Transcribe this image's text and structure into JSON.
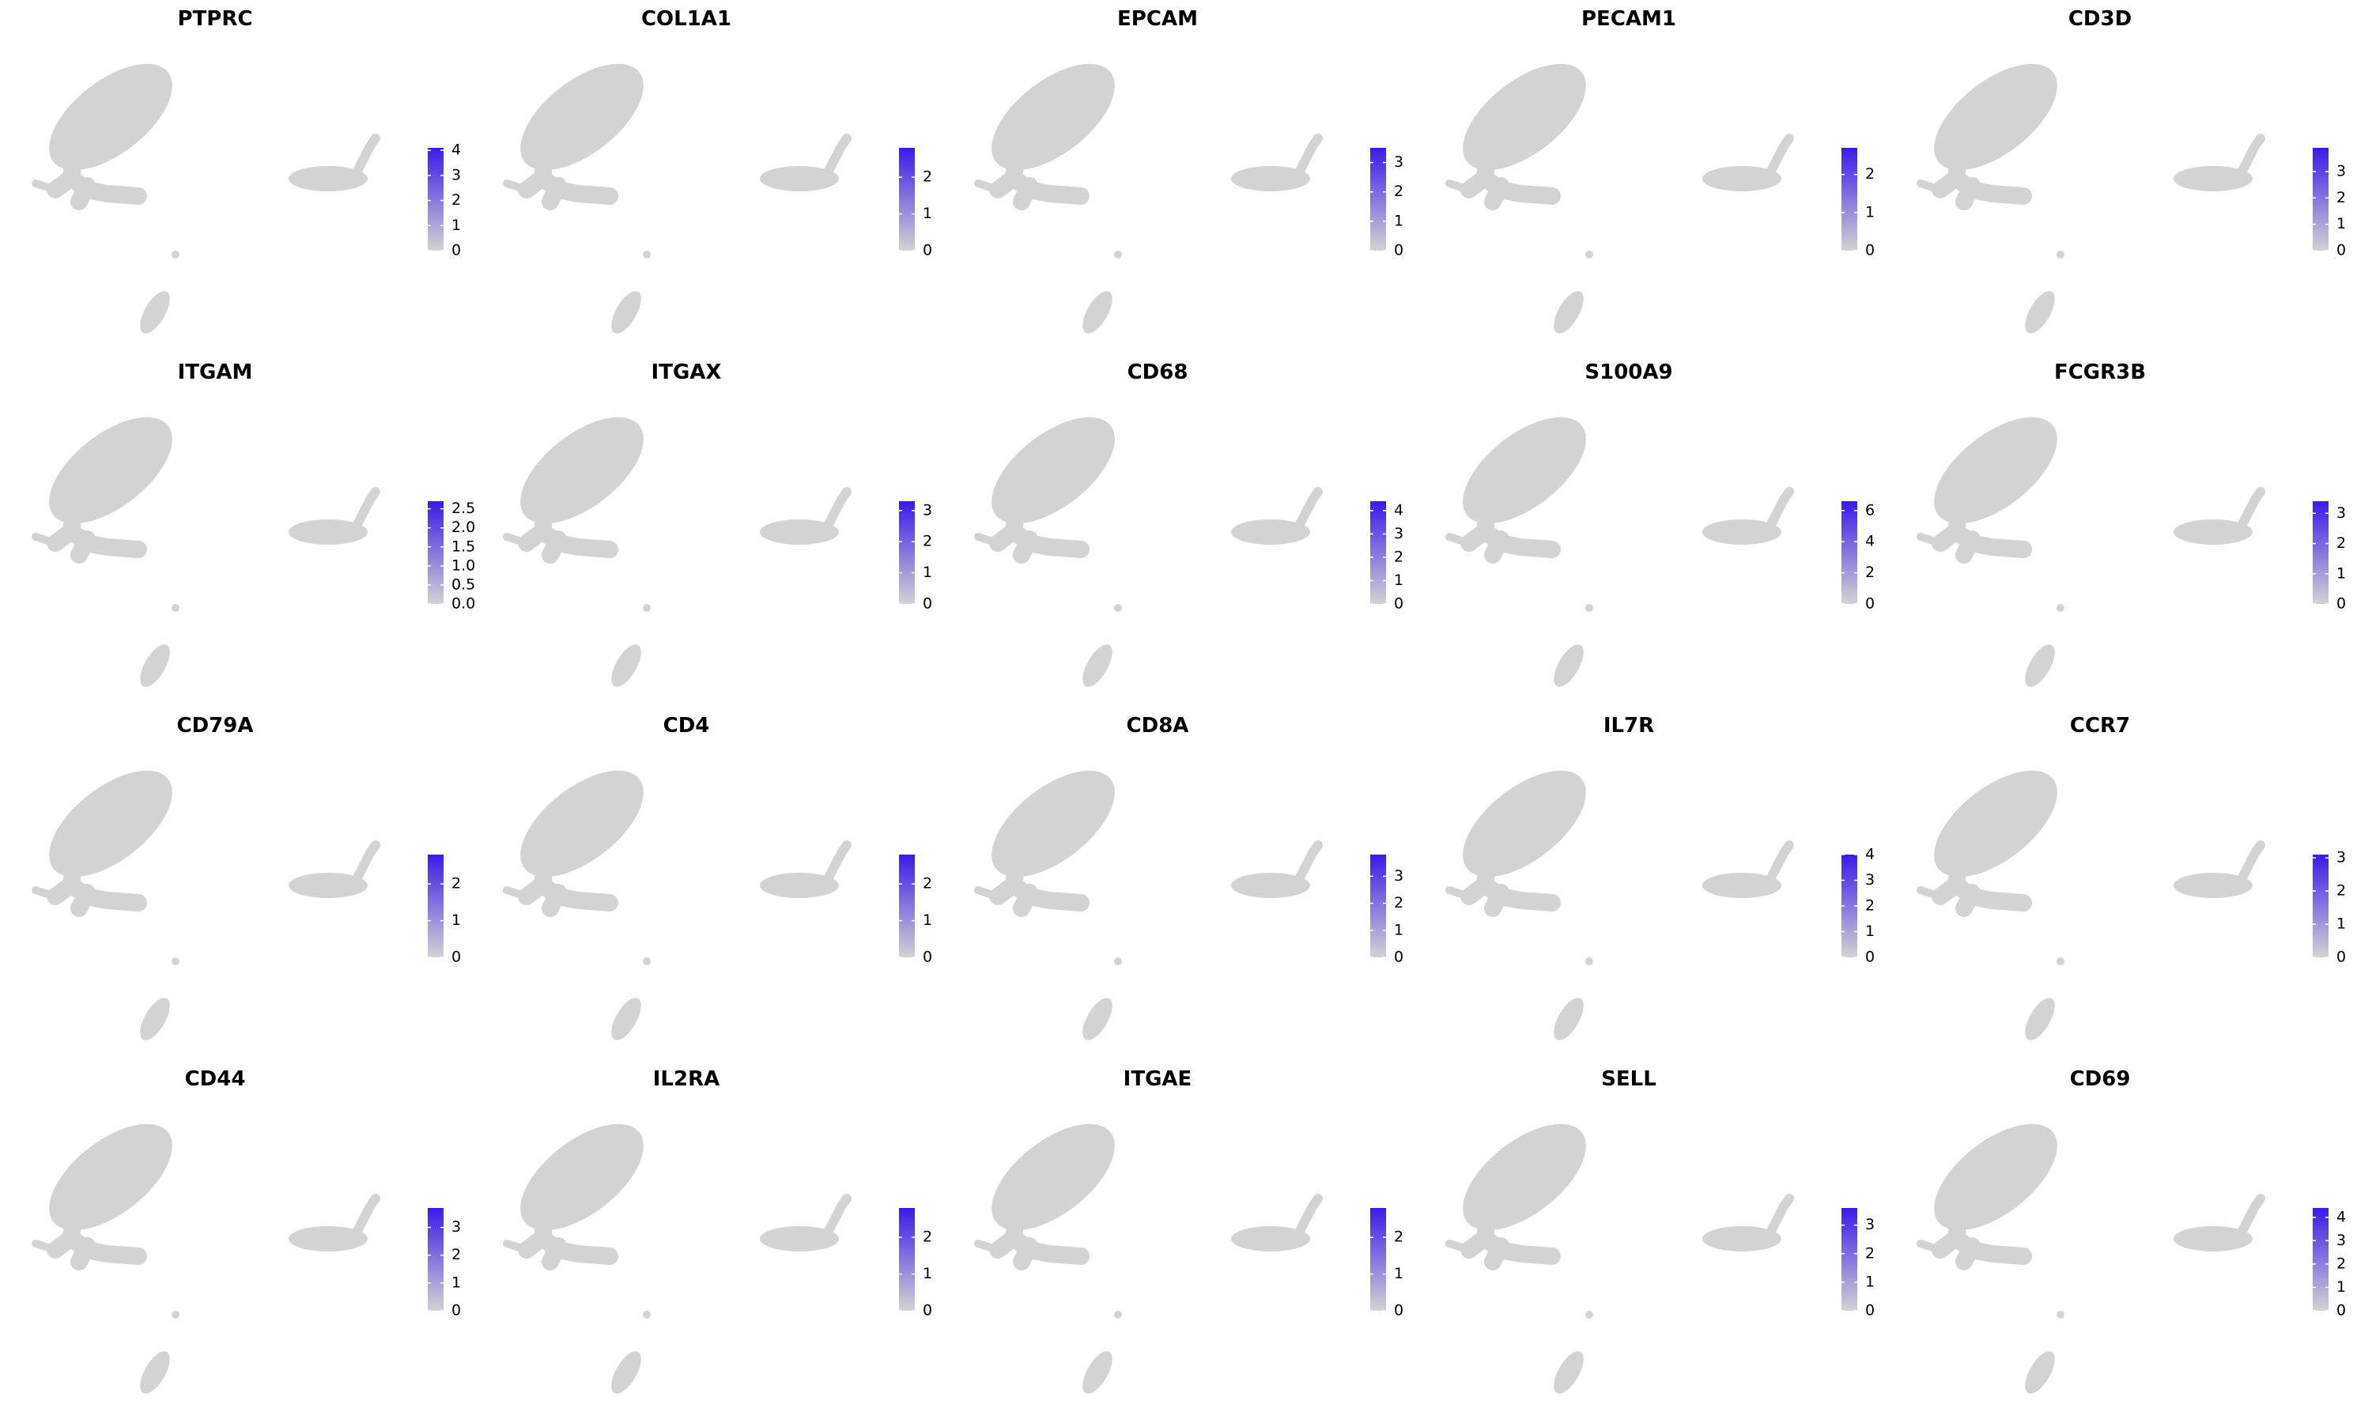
{
  "chart_data": [
    {
      "type": "scatter",
      "title": "PTPRC",
      "colorbar": {
        "lim": [
          0,
          4.1
        ],
        "ticks": [
          0,
          1,
          2,
          3,
          4
        ],
        "colors": [
          "#d3d3d3",
          "#3a1ae8"
        ]
      }
    },
    {
      "type": "scatter",
      "title": "COL1A1",
      "colorbar": {
        "lim": [
          0,
          2.8
        ],
        "ticks": [
          0,
          1,
          2
        ],
        "colors": [
          "#d3d3d3",
          "#3a1ae8"
        ]
      }
    },
    {
      "type": "scatter",
      "title": "EPCAM",
      "colorbar": {
        "lim": [
          0,
          3.5
        ],
        "ticks": [
          0,
          1,
          2,
          3
        ],
        "colors": [
          "#d3d3d3",
          "#3a1ae8"
        ]
      }
    },
    {
      "type": "scatter",
      "title": "PECAM1",
      "colorbar": {
        "lim": [
          0,
          2.7
        ],
        "ticks": [
          0,
          1,
          2
        ],
        "colors": [
          "#d3d3d3",
          "#3a1ae8"
        ]
      }
    },
    {
      "type": "scatter",
      "title": "CD3D",
      "colorbar": {
        "lim": [
          0,
          3.9
        ],
        "ticks": [
          0,
          1,
          2,
          3
        ],
        "colors": [
          "#d3d3d3",
          "#3a1ae8"
        ]
      }
    },
    {
      "type": "scatter",
      "title": "ITGAM",
      "colorbar": {
        "lim": [
          0,
          2.7
        ],
        "ticks": [
          {
            "value": 0,
            "label": "0.0"
          },
          {
            "value": 0.5,
            "label": "0.5"
          },
          {
            "value": 1,
            "label": "1.0"
          },
          {
            "value": 1.5,
            "label": "1.5"
          },
          {
            "value": 2,
            "label": "2.0"
          },
          {
            "value": 2.5,
            "label": "2.5"
          }
        ],
        "colors": [
          "#d3d3d3",
          "#3a1ae8"
        ]
      }
    },
    {
      "type": "scatter",
      "title": "ITGAX",
      "colorbar": {
        "lim": [
          0,
          3.3
        ],
        "ticks": [
          0,
          1,
          2,
          3
        ],
        "colors": [
          "#d3d3d3",
          "#3a1ae8"
        ]
      }
    },
    {
      "type": "scatter",
      "title": "CD68",
      "colorbar": {
        "lim": [
          0,
          4.4
        ],
        "ticks": [
          0,
          1,
          2,
          3,
          4
        ],
        "colors": [
          "#d3d3d3",
          "#3a1ae8"
        ]
      }
    },
    {
      "type": "scatter",
      "title": "S100A9",
      "colorbar": {
        "lim": [
          0,
          6.6
        ],
        "ticks": [
          0,
          2,
          4,
          6
        ],
        "colors": [
          "#d3d3d3",
          "#3a1ae8"
        ]
      }
    },
    {
      "type": "scatter",
      "title": "FCGR3B",
      "colorbar": {
        "lim": [
          0,
          3.4
        ],
        "ticks": [
          0,
          1,
          2,
          3
        ],
        "colors": [
          "#d3d3d3",
          "#3a1ae8"
        ]
      }
    },
    {
      "type": "scatter",
      "title": "CD79A",
      "colorbar": {
        "lim": [
          0,
          2.8
        ],
        "ticks": [
          0,
          1,
          2
        ],
        "colors": [
          "#d3d3d3",
          "#3a1ae8"
        ]
      }
    },
    {
      "type": "scatter",
      "title": "CD4",
      "colorbar": {
        "lim": [
          0,
          2.8
        ],
        "ticks": [
          0,
          1,
          2
        ],
        "colors": [
          "#d3d3d3",
          "#3a1ae8"
        ]
      }
    },
    {
      "type": "scatter",
      "title": "CD8A",
      "colorbar": {
        "lim": [
          0,
          3.8
        ],
        "ticks": [
          0,
          1,
          2,
          3
        ],
        "colors": [
          "#d3d3d3",
          "#3a1ae8"
        ]
      }
    },
    {
      "type": "scatter",
      "title": "IL7R",
      "colorbar": {
        "lim": [
          0,
          4.0
        ],
        "ticks": [
          0,
          1,
          2,
          3,
          4
        ],
        "colors": [
          "#d3d3d3",
          "#3a1ae8"
        ]
      }
    },
    {
      "type": "scatter",
      "title": "CCR7",
      "colorbar": {
        "lim": [
          0,
          3.1
        ],
        "ticks": [
          0,
          1,
          2,
          3
        ],
        "colors": [
          "#d3d3d3",
          "#3a1ae8"
        ]
      }
    },
    {
      "type": "scatter",
      "title": "CD44",
      "colorbar": {
        "lim": [
          0,
          3.7
        ],
        "ticks": [
          0,
          1,
          2,
          3
        ],
        "colors": [
          "#d3d3d3",
          "#3a1ae8"
        ]
      }
    },
    {
      "type": "scatter",
      "title": "IL2RA",
      "colorbar": {
        "lim": [
          0,
          2.8
        ],
        "ticks": [
          0,
          1,
          2
        ],
        "colors": [
          "#d3d3d3",
          "#3a1ae8"
        ]
      }
    },
    {
      "type": "scatter",
      "title": "ITGAE",
      "colorbar": {
        "lim": [
          0,
          2.8
        ],
        "ticks": [
          0,
          1,
          2
        ],
        "colors": [
          "#d3d3d3",
          "#3a1ae8"
        ]
      }
    },
    {
      "type": "scatter",
      "title": "SELL",
      "colorbar": {
        "lim": [
          0,
          3.6
        ],
        "ticks": [
          0,
          1,
          2,
          3
        ],
        "colors": [
          "#d3d3d3",
          "#3a1ae8"
        ]
      }
    },
    {
      "type": "scatter",
      "title": "CD69",
      "colorbar": {
        "lim": [
          0,
          4.4
        ],
        "ticks": [
          0,
          1,
          2,
          3,
          4
        ],
        "colors": [
          "#d3d3d3",
          "#3a1ae8"
        ]
      }
    }
  ]
}
